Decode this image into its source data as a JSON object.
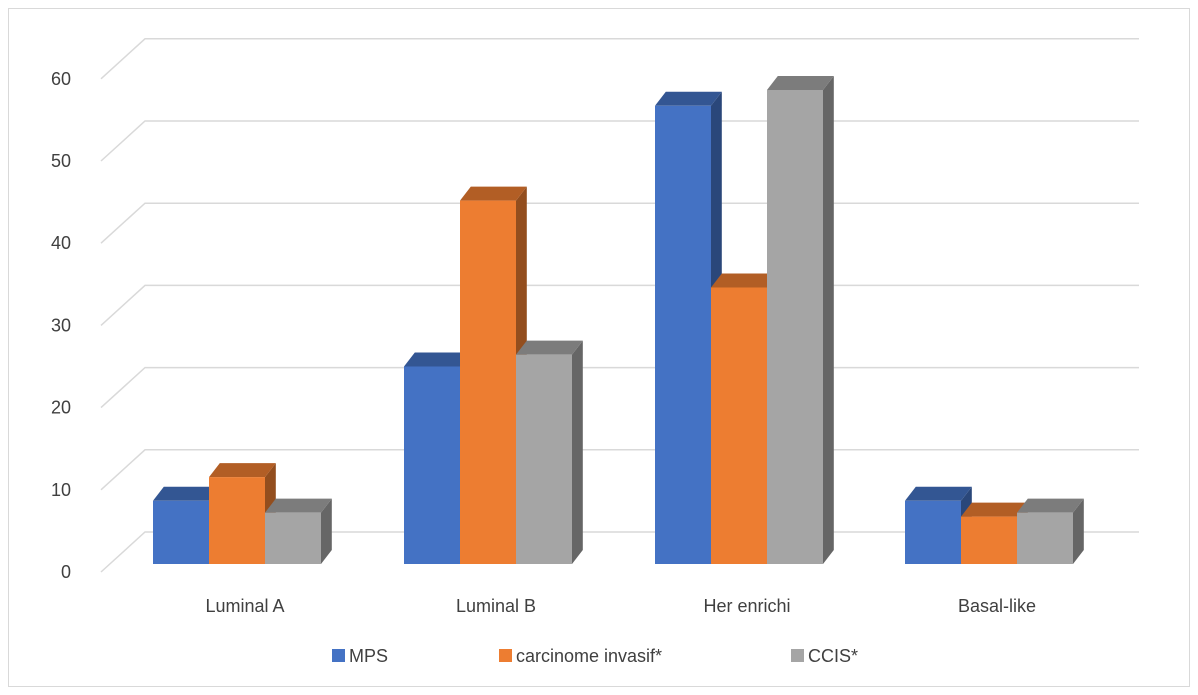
{
  "chart_data": {
    "type": "bar",
    "style": "3d-clustered-column",
    "categories": [
      "Luminal A",
      "Luminal B",
      "Her enrichi",
      "Basal-like"
    ],
    "series": [
      {
        "name": "MPS",
        "color": "#4472C4",
        "values": [
          8,
          25,
          58,
          8
        ]
      },
      {
        "name": "carcinome invasif*",
        "color": "#ED7D31",
        "values": [
          11,
          46,
          35,
          6
        ]
      },
      {
        "name": "CCIS*",
        "color": "#A5A5A5",
        "values": [
          6.5,
          26.5,
          60,
          6.5
        ]
      }
    ],
    "y_ticks": [
      "0",
      "10",
      "20",
      "30",
      "40",
      "50",
      "60"
    ],
    "ylim": [
      0,
      60
    ],
    "grid": true,
    "legend": "bottom",
    "title": "",
    "xlabel": "",
    "ylabel": ""
  }
}
